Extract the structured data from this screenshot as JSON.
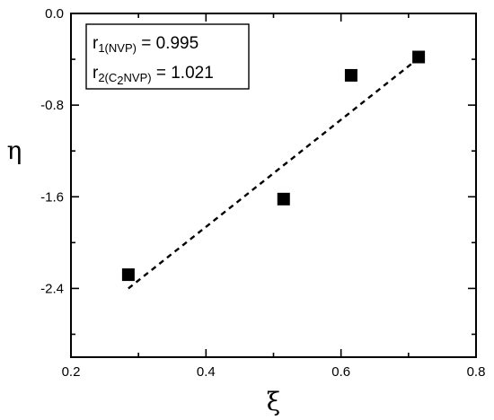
{
  "chart_data": {
    "type": "scatter",
    "title": "",
    "xlabel": "ξ",
    "ylabel": "η",
    "xlim": [
      0.2,
      0.8
    ],
    "ylim": [
      -3.0,
      0.0
    ],
    "x_ticks": [
      0.2,
      0.4,
      0.6,
      0.8
    ],
    "y_ticks": [
      0.0,
      -0.8,
      -1.6,
      -2.4
    ],
    "x_tick_labels": [
      "0.2",
      "0.4",
      "0.6",
      "0.8"
    ],
    "y_tick_labels": [
      "0.0",
      "-0.8",
      "-1.6",
      "-2.4"
    ],
    "grid": false,
    "legend_placement": "top-left",
    "series": [
      {
        "marker": "square",
        "color": "#000000",
        "points": [
          {
            "x": 0.285,
            "y": -2.28
          },
          {
            "x": 0.515,
            "y": -1.62
          },
          {
            "x": 0.615,
            "y": -0.54
          },
          {
            "x": 0.715,
            "y": -0.38
          }
        ]
      }
    ],
    "fit_line": {
      "style": "dashed",
      "color": "#000000",
      "points": [
        {
          "x": 0.285,
          "y": -2.4
        },
        {
          "x": 0.715,
          "y": -0.39
        }
      ]
    },
    "annotation": {
      "line1_main": "r",
      "line1_sub": "1(NVP)",
      "line1_value": " = 0.995",
      "line2_main": "r",
      "line2_sub_a": "2(C",
      "line2_sub_b": "2",
      "line2_sub_c": "NVP)",
      "line2_value": " = 1.021"
    }
  }
}
